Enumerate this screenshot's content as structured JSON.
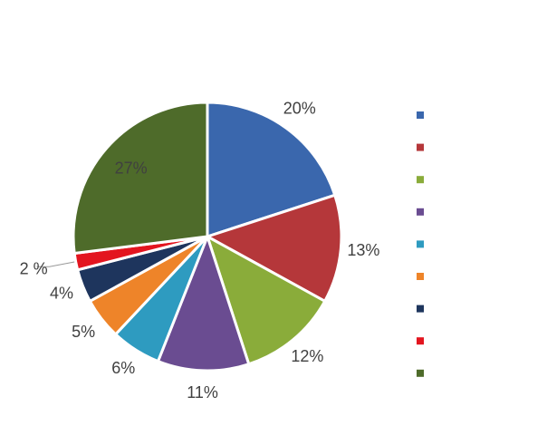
{
  "chart_data": {
    "type": "pie",
    "values": [
      20,
      13,
      12,
      11,
      6,
      5,
      4,
      2,
      27
    ],
    "value_labels": [
      "20%",
      "13%",
      "12%",
      "11%",
      "6%",
      "5%",
      "4%",
      "2 %",
      "27%"
    ],
    "colors": [
      "#3a67ad",
      "#b5373a",
      "#8aac3a",
      "#6a4c91",
      "#2e9bc0",
      "#ee8429",
      "#1e355d",
      "#e3151f",
      "#4e6b2a"
    ],
    "legend": "right"
  }
}
